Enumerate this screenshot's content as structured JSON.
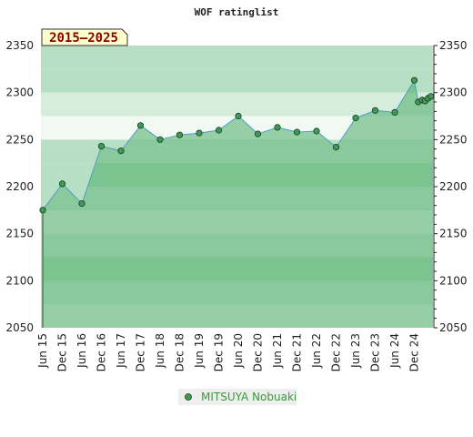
{
  "chart_data": {
    "type": "area",
    "title": "WOF ratinglist",
    "period_label": "2015–2025",
    "ylim": [
      2050,
      2350
    ],
    "y_ticks": [
      2050,
      2100,
      2150,
      2200,
      2250,
      2300,
      2350
    ],
    "x_ticks": [
      "Jun 15",
      "Dec 15",
      "Jun 16",
      "Dec 16",
      "Jun 17",
      "Dec 17",
      "Jun 18",
      "Dec 18",
      "Jun 19",
      "Dec 19",
      "Jun 20",
      "Dec 20",
      "Jun 21",
      "Dec 21",
      "Jun 22",
      "Dec 22",
      "Jun 23",
      "Dec 23",
      "Jun 24",
      "Dec 24"
    ],
    "grid": false,
    "legend_position": "bottom-center",
    "series": [
      {
        "name": "MITSUYA Nobuaki",
        "color": "#3a9a3a",
        "points": [
          {
            "x": 0.0,
            "y": 2175
          },
          {
            "x": 1.0,
            "y": 2203
          },
          {
            "x": 2.0,
            "y": 2182
          },
          {
            "x": 3.0,
            "y": 2243
          },
          {
            "x": 4.0,
            "y": 2238
          },
          {
            "x": 5.0,
            "y": 2265
          },
          {
            "x": 6.0,
            "y": 2250
          },
          {
            "x": 7.0,
            "y": 2255
          },
          {
            "x": 8.0,
            "y": 2257
          },
          {
            "x": 9.0,
            "y": 2260
          },
          {
            "x": 10.0,
            "y": 2275
          },
          {
            "x": 11.0,
            "y": 2256
          },
          {
            "x": 12.0,
            "y": 2263
          },
          {
            "x": 13.0,
            "y": 2258
          },
          {
            "x": 14.0,
            "y": 2259
          },
          {
            "x": 15.0,
            "y": 2242
          },
          {
            "x": 16.0,
            "y": 2273
          },
          {
            "x": 17.0,
            "y": 2281
          },
          {
            "x": 18.0,
            "y": 2279
          },
          {
            "x": 19.0,
            "y": 2313
          },
          {
            "x": 19.2,
            "y": 2290
          },
          {
            "x": 19.4,
            "y": 2292
          },
          {
            "x": 19.55,
            "y": 2291
          },
          {
            "x": 19.7,
            "y": 2294
          },
          {
            "x": 19.85,
            "y": 2296
          }
        ]
      }
    ]
  },
  "colors": {
    "area_fill": "#7cc48f",
    "line": "#4a9fc8",
    "marker_fill": "#3f9a55",
    "marker_stroke": "#1a3a22",
    "period_box_fill": "#ffffcc",
    "bands": [
      "#b7dfc3",
      "#d6eddc",
      "#f2f9f3",
      "#ffffff"
    ]
  }
}
